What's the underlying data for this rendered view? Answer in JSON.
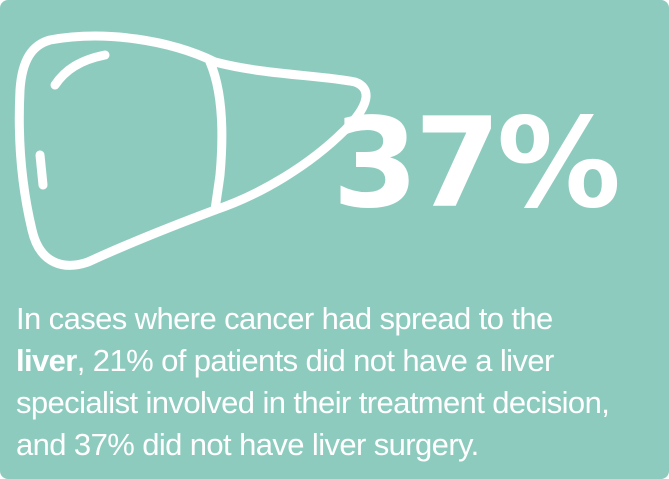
{
  "stat": {
    "value": "37%"
  },
  "caption": {
    "line1": "In cases where cancer had spread to the",
    "line2_bold": "liver",
    "line2_rest": ", 21% of patients did not have a liver",
    "line3": "specialist involved in their treatment decision,",
    "line4": "and 37% did not have liver surgery."
  },
  "colors": {
    "background": "#8ecbbf",
    "foreground": "#ffffff"
  },
  "icon": "liver-icon"
}
